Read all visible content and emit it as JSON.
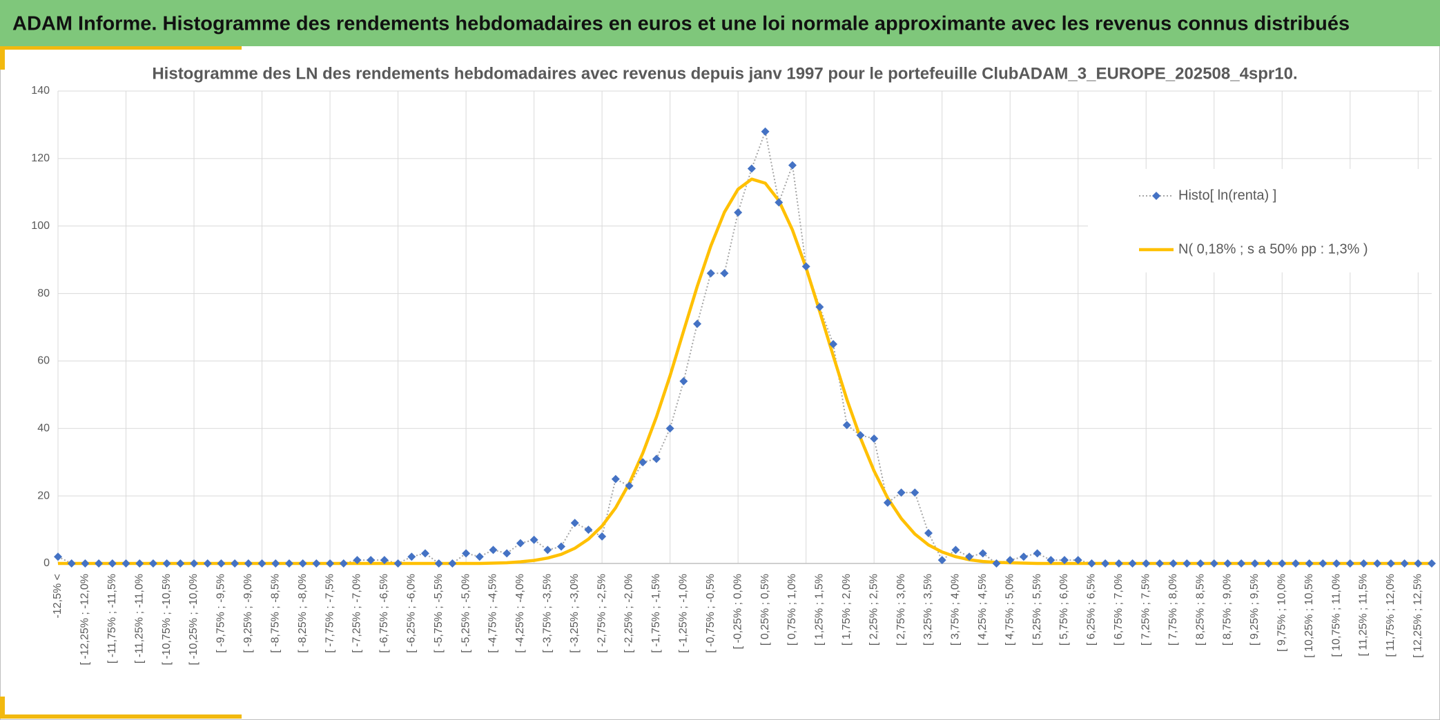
{
  "header": {
    "title": "ADAM Informe. Histogramme des rendements hebdomadaires en euros et une loi normale approximante avec les revenus connus distribués"
  },
  "chart_data": {
    "type": "line",
    "title": "Histogramme des LN des rendements hebdomadaires avec revenus depuis janv 1997 pour le portefeuille ClubADAM_3_EUROPE_202508_4spr10.",
    "categories": [
      "-12,5% <",
      null,
      "[ -12,25% ; -12,0%",
      null,
      "[ -11,75% ; -11,5%",
      null,
      "[ -11,25% ; -11,0%",
      null,
      "[ -10,75% ; -10,5%",
      null,
      "[ -10,25% ; -10,0%",
      null,
      "[ -9,75% ; -9,5%",
      null,
      "[ -9,25% ; -9,0%",
      null,
      "[ -8,75% ; -8,5%",
      null,
      "[ -8,25% ; -8,0%",
      null,
      "[ -7,75% ; -7,5%",
      null,
      "[ -7,25% ; -7,0%",
      null,
      "[ -6,75% ; -6,5%",
      null,
      "[ -6,25% ; -6,0%",
      null,
      "[ -5,75% ; -5,5%",
      null,
      "[ -5,25% ; -5,0%",
      null,
      "[ -4,75% ; -4,5%",
      null,
      "[ -4,25% ; -4,0%",
      null,
      "[ -3,75% ; -3,5%",
      null,
      "[ -3,25% ; -3,0%",
      null,
      "[ -2,75% ; -2,5%",
      null,
      "[ -2,25% ; -2,0%",
      null,
      "[ -1,75% ; -1,5%",
      null,
      "[ -1,25% ; -1,0%",
      null,
      "[ -0,75% ; -0,5%",
      null,
      "[ -0,25% ; 0,0%",
      null,
      "[ 0,25% ; 0,5%",
      null,
      "[ 0,75% ; 1,0%",
      null,
      "[ 1,25% ; 1,5%",
      null,
      "[ 1,75% ; 2,0%",
      null,
      "[ 2,25% ; 2,5%",
      null,
      "[ 2,75% ; 3,0%",
      null,
      "[ 3,25% ; 3,5%",
      null,
      "[ 3,75% ; 4,0%",
      null,
      "[ 4,25% ; 4,5%",
      null,
      "[ 4,75% ; 5,0%",
      null,
      "[ 5,25% ; 5,5%",
      null,
      "[ 5,75% ; 6,0%",
      null,
      "[ 6,25% ; 6,5%",
      null,
      "[ 6,75% ; 7,0%",
      null,
      "[ 7,25% ; 7,5%",
      null,
      "[ 7,75% ; 8,0%",
      null,
      "[ 8,25% ; 8,5%",
      null,
      "[ 8,75% ; 9,0%",
      null,
      "[ 9,25% ; 9,5%",
      null,
      "[ 9,75% ; 10,0%",
      null,
      "[ 10,25% ; 10,5%",
      null,
      "[ 10,75% ; 11,0%",
      null,
      "[ 11,25% ; 11,5%",
      null,
      "[ 11,75% ; 12,0%",
      null,
      "[ 12,25% ; 12,5%",
      null
    ],
    "series": [
      {
        "name": "Histo[ ln(renta) ]",
        "color": "#4472c4",
        "line_color": "#a5a5a5",
        "values": [
          2,
          0,
          0,
          0,
          0,
          0,
          0,
          0,
          0,
          0,
          0,
          0,
          0,
          0,
          0,
          0,
          0,
          0,
          0,
          0,
          0,
          0,
          1,
          1,
          1,
          0,
          2,
          3,
          0,
          0,
          3,
          2,
          4,
          3,
          6,
          7,
          4,
          5,
          12,
          10,
          8,
          25,
          23,
          30,
          31,
          40,
          54,
          71,
          86,
          86,
          104,
          117,
          128,
          107,
          118,
          88,
          76,
          65,
          41,
          38,
          37,
          18,
          21,
          21,
          9,
          1,
          4,
          2,
          3,
          0,
          1,
          2,
          3,
          1,
          1,
          1,
          0,
          0,
          0,
          0,
          0,
          0,
          0,
          0,
          0,
          0,
          0,
          0,
          0,
          0,
          0,
          0,
          0,
          0,
          0,
          0,
          0,
          0,
          0,
          0,
          0,
          0
        ]
      },
      {
        "name": "N( 0,18% ; s a 50% pp : 1,3% )",
        "color": "#ffc000",
        "values": [
          0,
          0,
          0,
          0,
          0,
          0,
          0,
          0,
          0,
          0,
          0,
          0,
          0,
          0,
          0,
          0,
          0,
          0,
          0,
          0,
          0,
          0,
          0,
          0,
          0,
          0,
          0,
          0,
          0,
          0,
          0,
          0,
          0.1,
          0.2,
          0.5,
          0.9,
          1.6,
          2.7,
          4.5,
          7.2,
          11.1,
          16.5,
          23.7,
          32.7,
          43.4,
          55.6,
          68.9,
          82.1,
          94.1,
          104.1,
          110.9,
          113.9,
          112.7,
          107.5,
          98.8,
          87.6,
          74.7,
          61.5,
          48.6,
          37.2,
          27.4,
          19.4,
          13.3,
          8.7,
          5.5,
          3.4,
          2.0,
          1.1,
          0.6,
          0.3,
          0.2,
          0.1,
          0,
          0,
          0,
          0,
          0,
          0,
          0,
          0,
          0,
          0,
          0,
          0,
          0,
          0,
          0,
          0,
          0,
          0,
          0,
          0,
          0,
          0,
          0,
          0,
          0,
          0,
          0,
          0,
          0,
          0
        ]
      }
    ],
    "ylim": [
      0,
      140
    ],
    "yticks": [
      0,
      20,
      40,
      60,
      80,
      100,
      120,
      140
    ],
    "grid": true,
    "legend": "right"
  }
}
